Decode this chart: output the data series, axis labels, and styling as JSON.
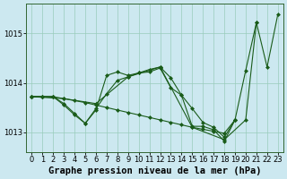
{
  "title": "Graphe pression niveau de la mer (hPa)",
  "bg_color": "#cce8f0",
  "plot_bg_color": "#cce8f0",
  "grid_color": "#99ccbb",
  "line_color": "#1a5c1a",
  "xlim": [
    -0.5,
    23.5
  ],
  "ylim": [
    1012.6,
    1015.6
  ],
  "yticks": [
    1013,
    1014,
    1015
  ],
  "xticks": [
    0,
    1,
    2,
    3,
    4,
    5,
    6,
    7,
    8,
    9,
    10,
    11,
    12,
    13,
    14,
    15,
    16,
    17,
    18,
    19,
    20,
    21,
    22,
    23
  ],
  "series": [
    {
      "x": [
        0,
        1,
        2,
        3,
        4,
        5,
        6,
        7,
        8,
        9,
        10,
        11,
        12,
        13,
        14,
        15,
        16,
        17,
        18,
        19
      ],
      "y": [
        1013.72,
        1013.72,
        1013.72,
        1013.68,
        1013.64,
        1013.6,
        1013.55,
        1013.5,
        1013.45,
        1013.4,
        1013.35,
        1013.3,
        1013.25,
        1013.2,
        1013.15,
        1013.1,
        1013.06,
        1013.02,
        1012.98,
        1013.25
      ],
      "marker": "D",
      "markersize": 2.0,
      "lw": 0.8
    },
    {
      "x": [
        0,
        1,
        2,
        3,
        4,
        5,
        6,
        7,
        8,
        9,
        10,
        11,
        12,
        13,
        14,
        15,
        16,
        17,
        18,
        19,
        20,
        21
      ],
      "y": [
        1013.72,
        1013.72,
        1013.72,
        1013.55,
        1013.35,
        1013.18,
        1013.45,
        1014.15,
        1014.22,
        1014.15,
        1014.2,
        1014.22,
        1014.3,
        1013.9,
        1013.75,
        1013.12,
        1013.12,
        1013.05,
        1012.82,
        1013.25,
        1014.25,
        1015.22
      ],
      "marker": "D",
      "markersize": 2.0,
      "lw": 0.8
    },
    {
      "x": [
        0,
        1,
        2,
        3,
        4,
        5,
        6,
        7,
        8,
        9,
        10,
        11,
        12,
        13,
        14,
        15,
        16,
        17,
        18,
        19
      ],
      "y": [
        1013.72,
        1013.72,
        1013.72,
        1013.58,
        1013.38,
        1013.18,
        1013.48,
        1013.78,
        1014.05,
        1014.12,
        1014.2,
        1014.27,
        1014.32,
        1014.1,
        1013.75,
        1013.48,
        1013.2,
        1013.1,
        1012.9,
        1013.25
      ],
      "marker": "D",
      "markersize": 2.0,
      "lw": 0.8
    },
    {
      "x": [
        0,
        3,
        6,
        9,
        12,
        15,
        18,
        20,
        21,
        22,
        23
      ],
      "y": [
        1013.72,
        1013.68,
        1013.58,
        1014.12,
        1014.32,
        1013.1,
        1012.85,
        1013.25,
        1015.22,
        1014.32,
        1015.38
      ],
      "marker": "D",
      "markersize": 2.0,
      "lw": 0.8
    }
  ],
  "title_fontsize": 7.5,
  "tick_fontsize": 6.0
}
